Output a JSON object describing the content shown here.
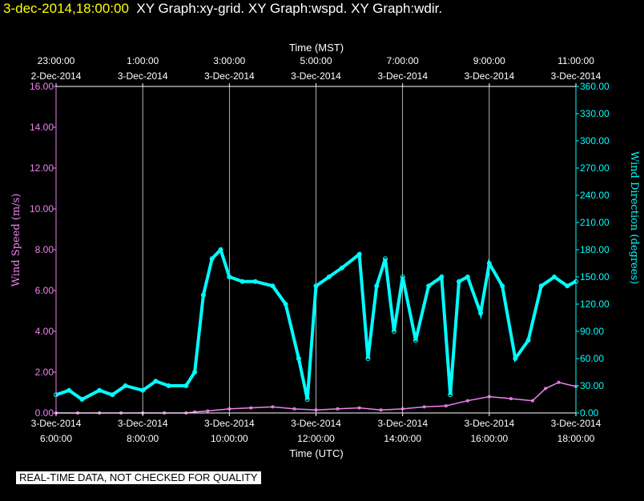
{
  "header": {
    "date_label": "3-dec-2014,18:00:00",
    "graphs_label": "XY Graph:xy-grid.  XY Graph:wspd.  XY Graph:wdir."
  },
  "footer": {
    "notice": "REAL-TIME DATA, NOT CHECKED FOR QUALITY"
  },
  "colors": {
    "wind_speed": "#ee82ee",
    "wind_direction": "#00ffff",
    "date": "#ffff00",
    "grid": "#ffffff"
  },
  "chart_data": {
    "type": "line",
    "top_axis": {
      "title": "Time (MST)",
      "ticks": [
        {
          "time": "23:00:00",
          "date": "2-Dec-2014"
        },
        {
          "time": "1:00:00",
          "date": "3-Dec-2014"
        },
        {
          "time": "3:00:00",
          "date": "3-Dec-2014"
        },
        {
          "time": "5:00:00",
          "date": "3-Dec-2014"
        },
        {
          "time": "7:00:00",
          "date": "3-Dec-2014"
        },
        {
          "time": "9:00:00",
          "date": "3-Dec-2014"
        },
        {
          "time": "11:00:00",
          "date": "3-Dec-2014"
        }
      ]
    },
    "bottom_axis": {
      "title": "Time (UTC)",
      "ticks": [
        {
          "date": "3-Dec-2014",
          "time": "6:00:00"
        },
        {
          "date": "3-Dec-2014",
          "time": "8:00:00"
        },
        {
          "date": "3-Dec-2014",
          "time": "10:00:00"
        },
        {
          "date": "3-Dec-2014",
          "time": "12:00:00"
        },
        {
          "date": "3-Dec-2014",
          "time": "14:00:00"
        },
        {
          "date": "3-Dec-2014",
          "time": "16:00:00"
        },
        {
          "date": "3-Dec-2014",
          "time": "18:00:00"
        }
      ]
    },
    "xlim_utc_hours": [
      6,
      18
    ],
    "left_axis": {
      "title": "Wind Speed (m/s)",
      "ylim": [
        0,
        16
      ],
      "tick_values": [
        0,
        2,
        4,
        6,
        8,
        10,
        12,
        14,
        16
      ],
      "tick_labels": [
        "0.00",
        "2.00",
        "4.00",
        "6.00",
        "8.00",
        "10.00",
        "12.00",
        "14.00",
        "16.00"
      ]
    },
    "right_axis": {
      "title": "Wind Direction (degrees)",
      "ylim": [
        0,
        360
      ],
      "tick_values": [
        0,
        30,
        60,
        90,
        120,
        150,
        180,
        210,
        240,
        270,
        300,
        330,
        360
      ],
      "tick_labels": [
        "0.00",
        "30.00",
        "60.00",
        "90.00",
        "120.00",
        "150.00",
        "180.00",
        "210.00",
        "240.00",
        "270.00",
        "300.00",
        "330.00",
        "360.00"
      ]
    },
    "grid": true,
    "series": [
      {
        "name": "Wind Speed",
        "axis": "left",
        "x_utc_hours": [
          6.0,
          6.5,
          7.0,
          7.5,
          8.0,
          8.5,
          9.0,
          9.2,
          9.5,
          10.0,
          10.5,
          11.0,
          11.5,
          12.0,
          12.5,
          13.0,
          13.5,
          14.0,
          14.5,
          15.0,
          15.5,
          16.0,
          16.5,
          17.0,
          17.3,
          17.6,
          18.0
        ],
        "values": [
          0.0,
          0.0,
          0.0,
          0.0,
          0.0,
          0.0,
          0.0,
          0.05,
          0.1,
          0.2,
          0.25,
          0.3,
          0.2,
          0.15,
          0.2,
          0.25,
          0.15,
          0.2,
          0.3,
          0.35,
          0.6,
          0.8,
          0.7,
          0.6,
          1.2,
          1.5,
          1.3
        ]
      },
      {
        "name": "Wind Direction",
        "axis": "right",
        "x_utc_hours": [
          6.0,
          6.3,
          6.6,
          7.0,
          7.3,
          7.6,
          8.0,
          8.3,
          8.6,
          9.0,
          9.2,
          9.4,
          9.6,
          9.8,
          10.0,
          10.3,
          10.6,
          11.0,
          11.3,
          11.6,
          11.8,
          12.0,
          12.3,
          12.6,
          13.0,
          13.2,
          13.4,
          13.6,
          13.8,
          14.0,
          14.3,
          14.6,
          14.9,
          15.1,
          15.3,
          15.5,
          15.8,
          16.0,
          16.3,
          16.6,
          16.9,
          17.2,
          17.5,
          17.8,
          18.0
        ],
        "values": [
          20,
          25,
          15,
          25,
          20,
          30,
          25,
          35,
          30,
          30,
          45,
          130,
          170,
          180,
          150,
          145,
          145,
          140,
          120,
          60,
          15,
          140,
          150,
          160,
          175,
          60,
          140,
          170,
          90,
          150,
          80,
          140,
          150,
          20,
          145,
          150,
          110,
          165,
          140,
          60,
          80,
          140,
          150,
          140,
          145
        ]
      }
    ]
  }
}
